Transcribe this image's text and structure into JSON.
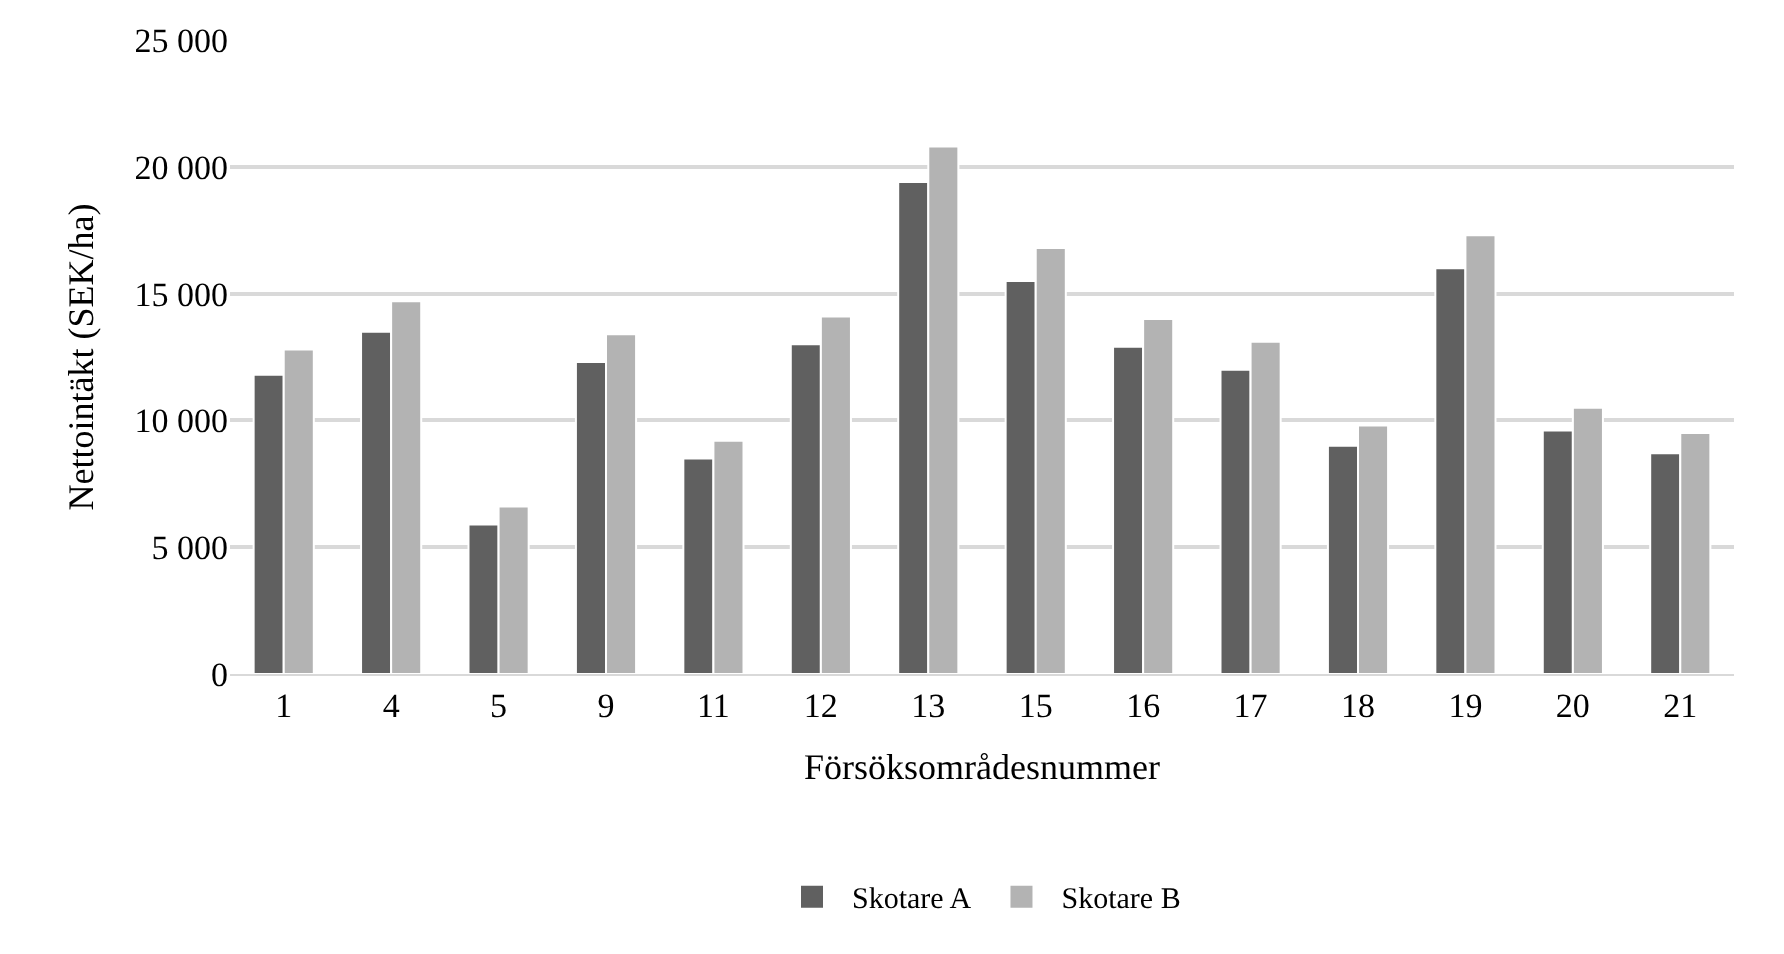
{
  "chart_data": {
    "type": "bar",
    "xlabel": "Försöksområdesnummer",
    "ylabel": "Nettointäkt (SEK/ha)",
    "categories": [
      "1",
      "4",
      "5",
      "9",
      "11",
      "12",
      "13",
      "15",
      "16",
      "17",
      "18",
      "19",
      "20",
      "21"
    ],
    "series": [
      {
        "name": "Skotare A",
        "color": "#606060",
        "values": [
          11800,
          13500,
          5900,
          12300,
          8500,
          13000,
          19400,
          15500,
          12900,
          12000,
          9000,
          16000,
          9600,
          8700
        ]
      },
      {
        "name": "Skotare B",
        "color": "#b3b3b3",
        "values": [
          12800,
          14700,
          6600,
          13400,
          9200,
          14100,
          20800,
          16800,
          14000,
          13100,
          9800,
          17300,
          10500,
          9500
        ]
      }
    ],
    "ylim": [
      0,
      25000
    ],
    "yticks": [
      {
        "value": 0,
        "label": "0"
      },
      {
        "value": 5000,
        "label": "5 000"
      },
      {
        "value": 10000,
        "label": "10 000"
      },
      {
        "value": 15000,
        "label": "15 000"
      },
      {
        "value": 20000,
        "label": "20 000"
      },
      {
        "value": 25000,
        "label": "25 000"
      }
    ],
    "grid": "y",
    "legend": "bottom"
  }
}
